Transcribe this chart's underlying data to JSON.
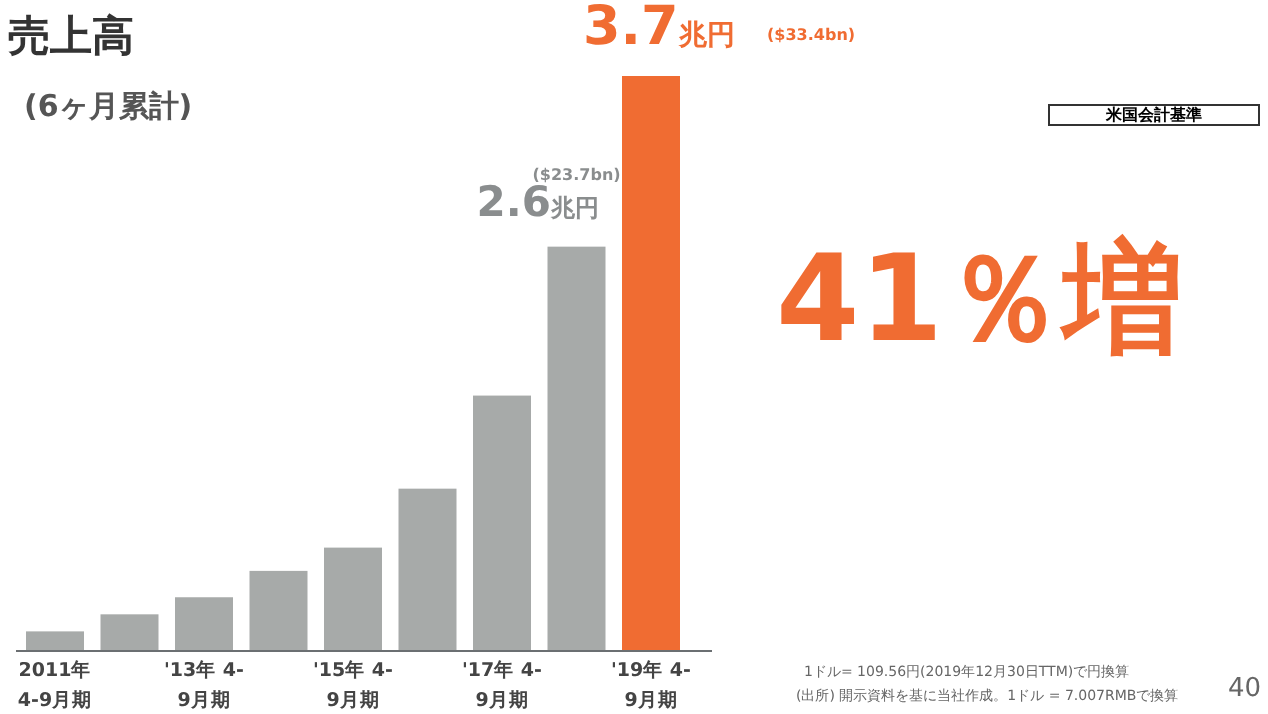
{
  "chart_data": {
    "type": "bar",
    "title": "売上高",
    "subtitle": "(6ヶ月累計)",
    "categories": [
      "2011年 4-9月期",
      null,
      "'13年 4-9月期",
      null,
      "'15年 4-9月期",
      null,
      "'17年 4-9月期",
      null,
      "'19年 4-9月期"
    ],
    "values": [
      0.12,
      0.23,
      0.34,
      0.51,
      0.66,
      1.04,
      1.64,
      2.6,
      3.7
    ],
    "colors": [
      "#a7aaa9",
      "#a7aaa9",
      "#a7aaa9",
      "#a7aaa9",
      "#a7aaa9",
      "#a7aaa9",
      "#a7aaa9",
      "#a7aaa9",
      "#f06c32"
    ],
    "value_labels": [
      null,
      null,
      null,
      null,
      null,
      null,
      null,
      "2.6兆円",
      "3.7兆円"
    ],
    "annotations": [
      "($23.7bn)",
      "($33.4bn)",
      "41％増",
      "米国会計基準",
      "1ドル= 109.56円(2019年12月30日TTM)で円換算",
      "(出所) 開示資料を基に当社作成。1ドル = 7.007RMBで換算",
      "40"
    ]
  }
}
